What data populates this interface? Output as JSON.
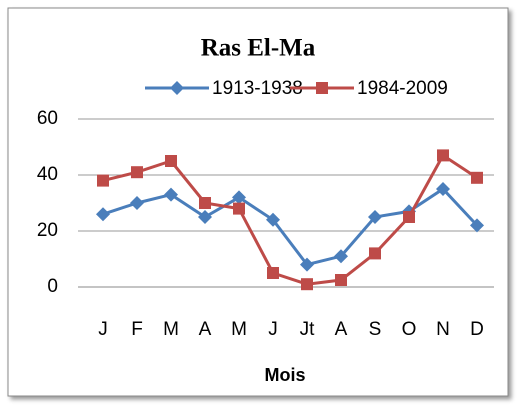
{
  "chart_data": {
    "type": "line",
    "title": "Ras El-Ma",
    "x_label": "Mois",
    "categories": [
      "J",
      "F",
      "M",
      "A",
      "M",
      "J",
      "Jt",
      "A",
      "S",
      "O",
      "N",
      "D"
    ],
    "series": [
      {
        "name": "1913-1938",
        "color": "#4a7ebb",
        "marker": "diamond",
        "values": [
          26,
          30,
          33,
          25,
          32,
          24,
          8,
          11,
          25,
          27,
          35,
          22
        ]
      },
      {
        "name": "1984-2009",
        "color": "#be4b48",
        "marker": "square",
        "values": [
          38,
          41,
          45,
          30,
          28,
          5,
          1,
          2.5,
          12,
          25,
          47,
          39
        ]
      }
    ],
    "ylim": [
      0,
      60
    ],
    "yticks": [
      0,
      20,
      40,
      60
    ],
    "grid": true,
    "legend": "top"
  }
}
